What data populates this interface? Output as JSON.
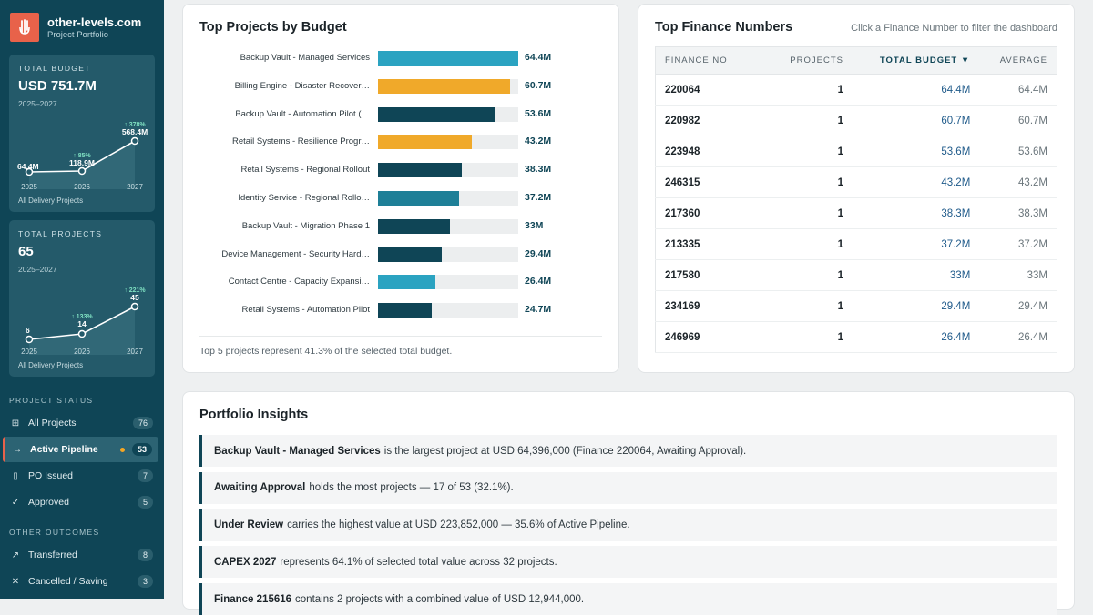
{
  "brand": {
    "name": "other-levels.com",
    "subtitle": "Project Portfolio"
  },
  "total_budget": {
    "label": "TOTAL BUDGET",
    "value": "USD 751.7M",
    "range": "2025–2027",
    "points": [
      {
        "year": "2025",
        "value": "64.4M",
        "change": ""
      },
      {
        "year": "2026",
        "value": "118.9M",
        "change": "↑ 85%"
      },
      {
        "year": "2027",
        "value": "568.4M",
        "change": "↑ 378%"
      }
    ],
    "footer": "All Delivery Projects"
  },
  "total_projects": {
    "label": "TOTAL PROJECTS",
    "value": "65",
    "range": "2025–2027",
    "points": [
      {
        "year": "2025",
        "value": "6",
        "change": ""
      },
      {
        "year": "2026",
        "value": "14",
        "change": "↑ 133%"
      },
      {
        "year": "2027",
        "value": "45",
        "change": "↑ 221%"
      }
    ],
    "footer": "All Delivery Projects"
  },
  "status_nav": {
    "heading": "PROJECT STATUS",
    "items": [
      {
        "label": "All Projects",
        "count": "76",
        "icon": "grid-icon"
      },
      {
        "label": "Active Pipeline",
        "count": "53",
        "icon": "arrow-right-icon"
      },
      {
        "label": "PO Issued",
        "count": "7",
        "icon": "document-icon"
      },
      {
        "label": "Approved",
        "count": "5",
        "icon": "check-icon"
      }
    ]
  },
  "outcomes_nav": {
    "heading": "OTHER OUTCOMES",
    "items": [
      {
        "label": "Transferred",
        "count": "8",
        "icon": "arrow-up-right-icon"
      },
      {
        "label": "Cancelled / Saving",
        "count": "3",
        "icon": "x-icon"
      }
    ]
  },
  "top_projects": {
    "title": "Top Projects by Budget",
    "footer": "Top 5 projects represent 41.3% of the selected total budget.",
    "bars": [
      {
        "label": "Backup Vault - Managed Services",
        "value": 64.4,
        "display": "64.4M",
        "color": "#2ba3c1"
      },
      {
        "label": "Billing Engine - Disaster Recover…",
        "value": 60.7,
        "display": "60.7M",
        "color": "#f0a92a"
      },
      {
        "label": "Backup Vault - Automation Pilot (…",
        "value": 53.6,
        "display": "53.6M",
        "color": "#0f4556"
      },
      {
        "label": "Retail Systems - Resilience Progr…",
        "value": 43.2,
        "display": "43.2M",
        "color": "#f0a92a"
      },
      {
        "label": "Retail Systems - Regional Rollout",
        "value": 38.3,
        "display": "38.3M",
        "color": "#0f4556"
      },
      {
        "label": "Identity Service - Regional Rollo…",
        "value": 37.2,
        "display": "37.2M",
        "color": "#1e7f97"
      },
      {
        "label": "Backup Vault - Migration Phase 1",
        "value": 33,
        "display": "33M",
        "color": "#0f4556"
      },
      {
        "label": "Device Management - Security Hard…",
        "value": 29.4,
        "display": "29.4M",
        "color": "#0f4556"
      },
      {
        "label": "Contact Centre - Capacity Expansi…",
        "value": 26.4,
        "display": "26.4M",
        "color": "#2ba3c1"
      },
      {
        "label": "Retail Systems - Automation Pilot",
        "value": 24.7,
        "display": "24.7M",
        "color": "#0f4556"
      }
    ]
  },
  "finance": {
    "title": "Top Finance Numbers",
    "hint": "Click a Finance Number to filter the dashboard",
    "columns": [
      "FINANCE NO",
      "PROJECTS",
      "TOTAL BUDGET ▼",
      "AVERAGE"
    ],
    "rows": [
      [
        "220064",
        "1",
        "64.4M",
        "64.4M"
      ],
      [
        "220982",
        "1",
        "60.7M",
        "60.7M"
      ],
      [
        "223948",
        "1",
        "53.6M",
        "53.6M"
      ],
      [
        "246315",
        "1",
        "43.2M",
        "43.2M"
      ],
      [
        "217360",
        "1",
        "38.3M",
        "38.3M"
      ],
      [
        "213335",
        "1",
        "37.2M",
        "37.2M"
      ],
      [
        "217580",
        "1",
        "33M",
        "33M"
      ],
      [
        "234169",
        "1",
        "29.4M",
        "29.4M"
      ],
      [
        "246969",
        "1",
        "26.4M",
        "26.4M"
      ]
    ]
  },
  "insights": {
    "title": "Portfolio Insights",
    "items": [
      {
        "bold": "Backup Vault - Managed Services",
        "text": "is the largest project at USD 64,396,000 (Finance 220064, Awaiting Approval)."
      },
      {
        "bold": "Awaiting Approval",
        "text": "holds the most projects — 17 of 53 (32.1%)."
      },
      {
        "bold": "Under Review",
        "text": "carries the highest value at USD 223,852,000 — 35.6% of Active Pipeline."
      },
      {
        "bold": "CAPEX 2027",
        "text": "represents 64.1% of selected total value across 32 projects."
      },
      {
        "bold": "Finance 215616",
        "text": "contains 2 projects with a combined value of USD 12,944,000."
      }
    ]
  },
  "colors": {
    "sidebar": "#0f4556",
    "accent": "#e8624a",
    "teal": "#2ba3c1",
    "amber": "#f0a92a"
  }
}
